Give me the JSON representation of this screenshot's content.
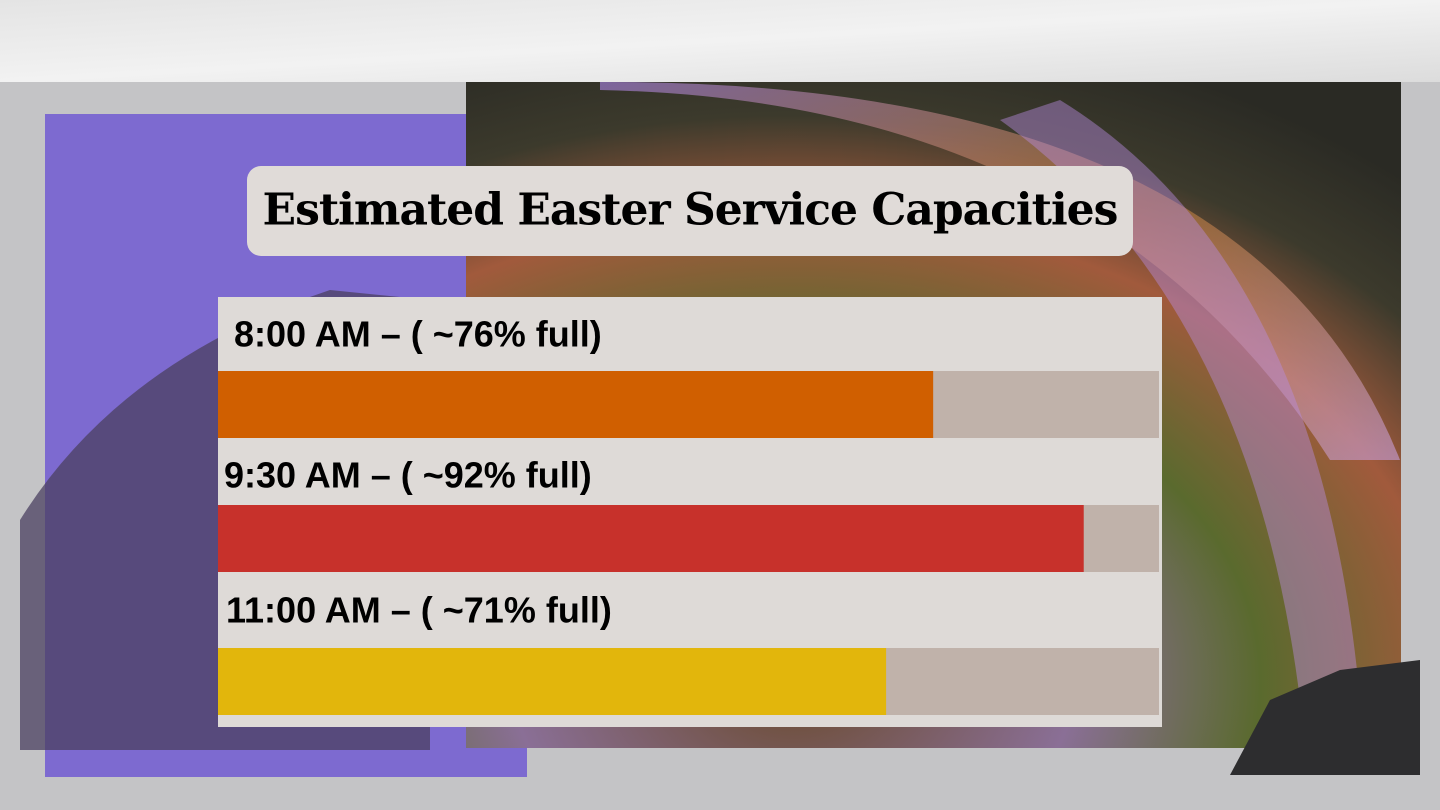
{
  "chart_data": {
    "type": "bar",
    "orientation": "horizontal",
    "title": "Estimated Easter Service Capacities",
    "categories": [
      "8:00 AM –  ( ~76% full)",
      "9:30 AM – ( ~92% full)",
      "11:00 AM – ( ~71% full)"
    ],
    "values": [
      76,
      92,
      71
    ],
    "colors": [
      "#d05f00",
      "#c7312b",
      "#e2b60c"
    ],
    "track_color": "#c0b2aa",
    "xlim": [
      0,
      100
    ]
  }
}
